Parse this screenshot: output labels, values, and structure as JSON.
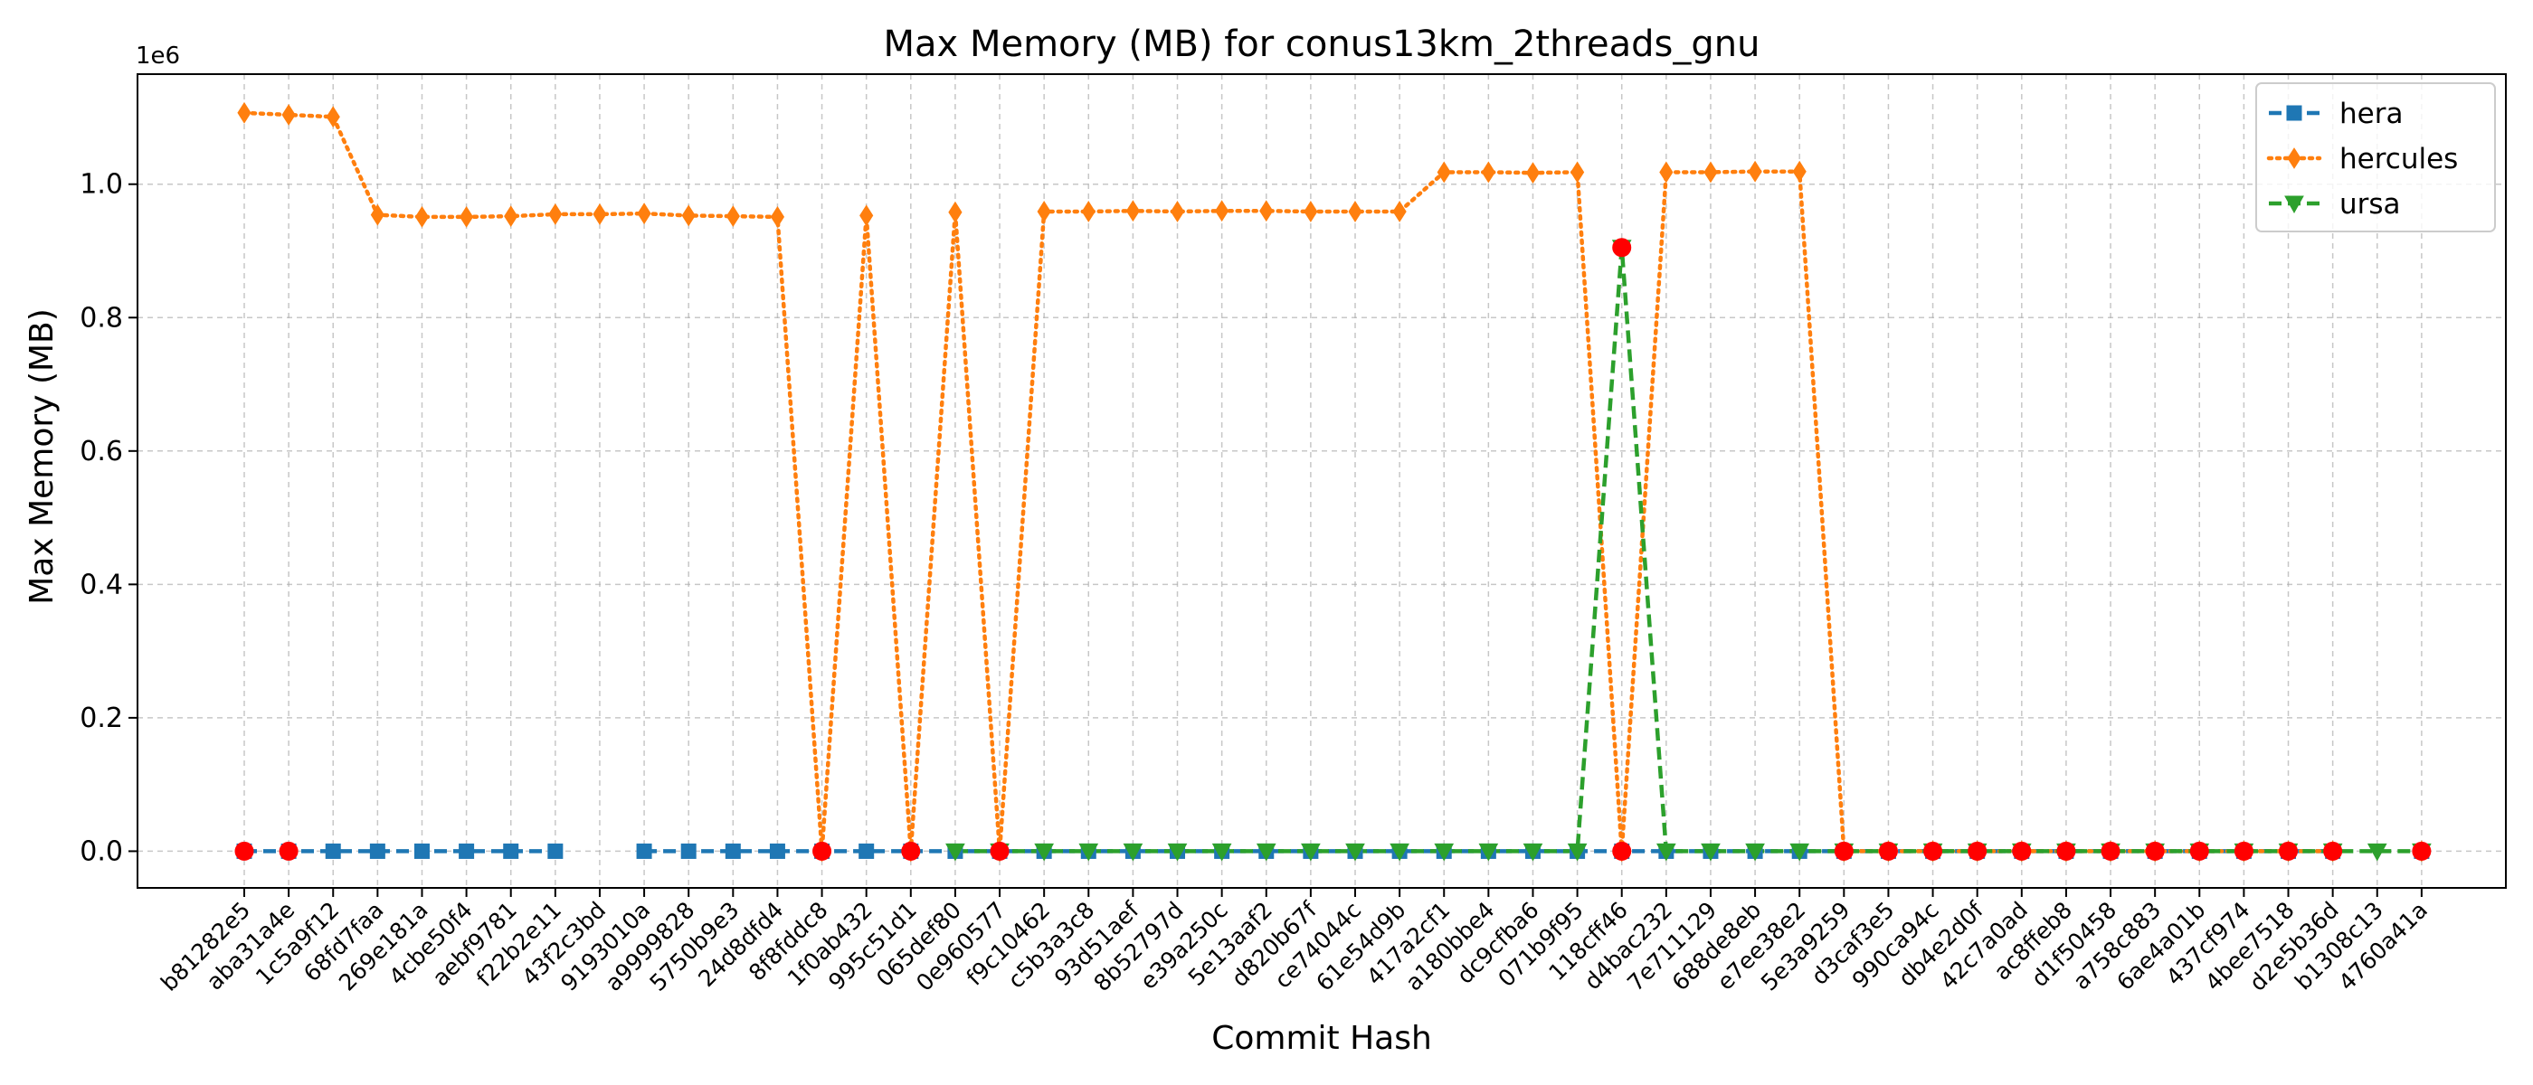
{
  "chart_data": {
    "type": "line",
    "title": "Max Memory (MB) for conus13km_2threads_gnu",
    "xlabel": "Commit Hash",
    "ylabel": "Max Memory (MB)",
    "y_offset_label": "1e6",
    "ylim": [
      -0.055,
      1.165
    ],
    "y_ticks": [
      "0.0",
      "0.2",
      "0.4",
      "0.6",
      "0.8",
      "1.0"
    ],
    "y_tick_values": [
      0,
      0.2,
      0.4,
      0.6,
      0.8,
      1.0
    ],
    "grid": true,
    "legend_position": "top-right",
    "categories": [
      "b81282e5",
      "aba31a4e",
      "1c5a9f12",
      "68fd7faa",
      "269e181a",
      "4cbe50f4",
      "aebf9781",
      "f22b2e11",
      "43f2c3bd",
      "9193010a",
      "a9999828",
      "5750b9e3",
      "24d8dfd4",
      "8f8fddc8",
      "1f0ab432",
      "995c51d1",
      "065def80",
      "0e960577",
      "f9c10462",
      "c5b3a3c8",
      "93d51aef",
      "8b52797d",
      "e39a250c",
      "5e13aaf2",
      "d820b67f",
      "ce74044c",
      "61e54d9b",
      "417a2cf1",
      "a180bbe4",
      "dc9cfba6",
      "071b9f95",
      "118cff46",
      "d4bac232",
      "7e711129",
      "688de8eb",
      "e7ee38e2",
      "5e3a9259",
      "d3caf3e5",
      "990ca94c",
      "db4e2d0f",
      "42c7a0ad",
      "ac8ffeb8",
      "d1f50458",
      "a758c883",
      "6ae4a01b",
      "437cf974",
      "4bee7518",
      "d2e5b36d",
      "b1308c13",
      "4760a41a"
    ],
    "series": [
      {
        "name": "hera",
        "color": "#1f77b4",
        "marker": "square",
        "linestyle": "dashed",
        "values": [
          0,
          0,
          0,
          0,
          0,
          0,
          0,
          0,
          null,
          0,
          0,
          0,
          0,
          0,
          0,
          0,
          0,
          0,
          0,
          0,
          0,
          0,
          0,
          0,
          0,
          0,
          0,
          0,
          0,
          0,
          0,
          0,
          0,
          0,
          0,
          0,
          0,
          0,
          0,
          0,
          0,
          0,
          0,
          0,
          0,
          0,
          0,
          0,
          null,
          0
        ]
      },
      {
        "name": "hercules",
        "color": "#ff7f0e",
        "marker": "diamond",
        "linestyle": "dotted",
        "values": [
          1.107,
          1.104,
          1.101,
          0.954,
          0.951,
          0.951,
          0.952,
          0.955,
          0.955,
          0.956,
          0.953,
          0.952,
          0.951,
          0,
          0.953,
          0,
          0.958,
          0,
          0.959,
          0.959,
          0.96,
          0.959,
          0.96,
          0.96,
          0.959,
          0.959,
          0.959,
          1.018,
          1.018,
          1.017,
          1.018,
          0,
          1.018,
          1.018,
          1.019,
          1.019,
          0,
          0,
          0,
          0,
          0,
          0,
          0,
          0,
          0,
          0,
          0,
          0,
          null,
          0
        ]
      },
      {
        "name": "ursa",
        "color": "#2ca02c",
        "marker": "triangle-down",
        "linestyle": "dashed",
        "values": [
          null,
          null,
          null,
          null,
          null,
          null,
          null,
          null,
          null,
          null,
          null,
          null,
          null,
          null,
          null,
          null,
          0,
          0,
          0,
          0,
          0,
          0,
          0,
          0,
          0,
          0,
          0,
          0,
          0,
          0,
          0,
          0.905,
          0,
          0,
          0,
          0,
          0,
          0,
          0,
          0,
          0,
          0,
          0,
          0,
          0,
          0,
          0,
          0,
          0,
          0
        ]
      }
    ],
    "highlight_points": {
      "color": "#ff0000",
      "marker": "circle",
      "points": [
        {
          "x": "b81282e5",
          "y": 0
        },
        {
          "x": "aba31a4e",
          "y": 0
        },
        {
          "x": "8f8fddc8",
          "y": 0
        },
        {
          "x": "995c51d1",
          "y": 0
        },
        {
          "x": "0e960577",
          "y": 0
        },
        {
          "x": "118cff46",
          "y": 0.905
        },
        {
          "x": "118cff46",
          "y": 0
        },
        {
          "x": "5e3a9259",
          "y": 0
        },
        {
          "x": "d3caf3e5",
          "y": 0
        },
        {
          "x": "990ca94c",
          "y": 0
        },
        {
          "x": "db4e2d0f",
          "y": 0
        },
        {
          "x": "42c7a0ad",
          "y": 0
        },
        {
          "x": "ac8ffeb8",
          "y": 0
        },
        {
          "x": "d1f50458",
          "y": 0
        },
        {
          "x": "a758c883",
          "y": 0
        },
        {
          "x": "6ae4a01b",
          "y": 0
        },
        {
          "x": "437cf974",
          "y": 0
        },
        {
          "x": "4bee7518",
          "y": 0
        },
        {
          "x": "d2e5b36d",
          "y": 0
        },
        {
          "x": "4760a41a",
          "y": 0
        }
      ]
    }
  }
}
